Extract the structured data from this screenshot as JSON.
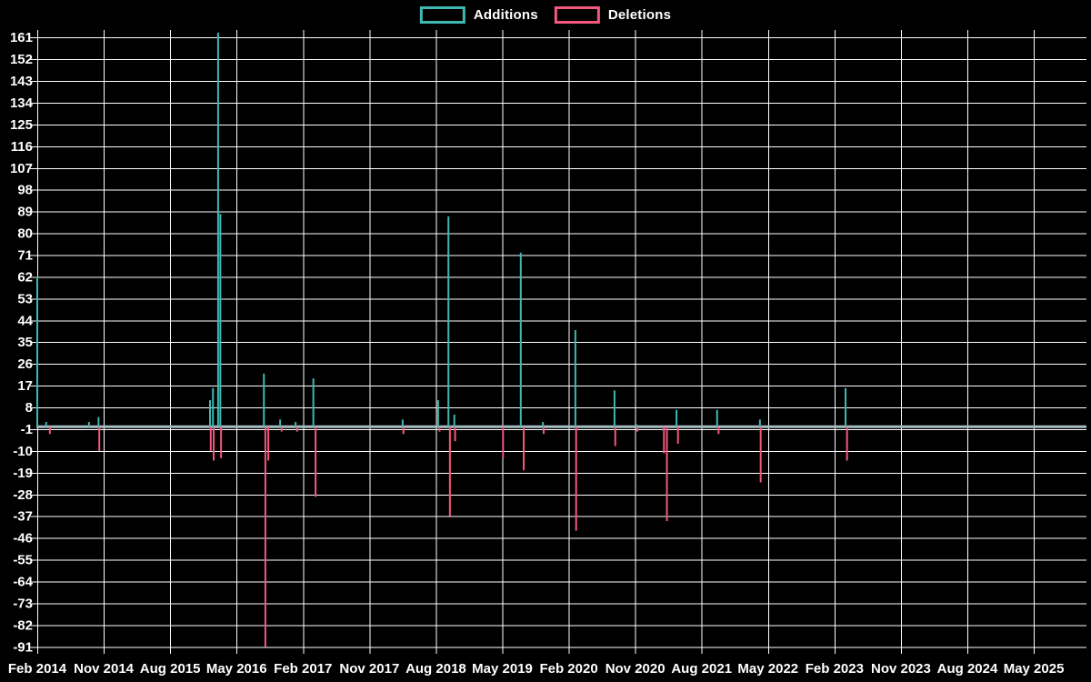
{
  "page": {
    "background": "#000000",
    "grid_color": "#ffffff",
    "text_color": "#ffffff",
    "baseline_color": "#a6bcc3"
  },
  "legend": {
    "additions_label": "Additions",
    "deletions_label": "Deletions"
  },
  "chart_data": {
    "type": "line",
    "title": "",
    "xlabel": "",
    "ylabel": "",
    "grid": true,
    "legend_position": "top-center",
    "x_unit": "months_since_Feb_2014",
    "x_axis": {
      "tick_labels": [
        "Feb 2014",
        "Nov 2014",
        "Aug 2015",
        "May 2016",
        "Feb 2017",
        "Nov 2017",
        "Aug 2018",
        "May 2019",
        "Feb 2020",
        "Nov 2020",
        "Aug 2021",
        "May 2022",
        "Feb 2023",
        "Nov 2023",
        "Aug 2024",
        "May 2025"
      ],
      "tick_interval_months": 9,
      "range_months": [
        0,
        142
      ]
    },
    "y_axis": {
      "tick_labels": [
        161,
        152,
        143,
        134,
        125,
        116,
        107,
        98,
        89,
        80,
        71,
        62,
        53,
        44,
        35,
        26,
        17,
        8,
        -1,
        -10,
        -19,
        -28,
        -37,
        -46,
        -55,
        -64,
        -73,
        -82,
        -91
      ],
      "range": [
        -91,
        164
      ]
    },
    "baseline_value": 0,
    "series": [
      {
        "name": "Additions",
        "color": "#3fb8b1",
        "baseline_value": 0,
        "spikes": [
          [
            0,
            62
          ],
          [
            1.2,
            2
          ],
          [
            7.0,
            2
          ],
          [
            8.3,
            4
          ],
          [
            23.4,
            11
          ],
          [
            23.8,
            16
          ],
          [
            24.5,
            163
          ],
          [
            24.8,
            88
          ],
          [
            30.7,
            22
          ],
          [
            32.9,
            3
          ],
          [
            35.0,
            2
          ],
          [
            37.4,
            20
          ],
          [
            49.5,
            3
          ],
          [
            54.3,
            11
          ],
          [
            55.7,
            87
          ],
          [
            56.5,
            5
          ],
          [
            65.5,
            72
          ],
          [
            68.5,
            2
          ],
          [
            72.9,
            40
          ],
          [
            78.2,
            15
          ],
          [
            81.2,
            1
          ],
          [
            86.6,
            7
          ],
          [
            92.1,
            7
          ],
          [
            97.9,
            3
          ],
          [
            109.5,
            16
          ]
        ]
      },
      {
        "name": "Deletions",
        "color": "#f4587e",
        "baseline_value": 0,
        "spikes": [
          [
            1.7,
            -3
          ],
          [
            8.4,
            -10
          ],
          [
            23.5,
            -10
          ],
          [
            23.9,
            -14
          ],
          [
            24.9,
            -13
          ],
          [
            30.9,
            -91
          ],
          [
            31.3,
            -14
          ],
          [
            33.1,
            -2
          ],
          [
            35.2,
            -2
          ],
          [
            37.7,
            -29
          ],
          [
            49.6,
            -3
          ],
          [
            54.5,
            -2
          ],
          [
            55.9,
            -37
          ],
          [
            56.6,
            -6
          ],
          [
            63.1,
            -13
          ],
          [
            65.9,
            -18
          ],
          [
            68.6,
            -3
          ],
          [
            73.0,
            -43
          ],
          [
            78.3,
            -8
          ],
          [
            81.3,
            -2
          ],
          [
            84.9,
            -11
          ],
          [
            85.3,
            -39
          ],
          [
            86.8,
            -7
          ],
          [
            92.3,
            -3
          ],
          [
            98.0,
            -23
          ],
          [
            109.7,
            -14
          ]
        ]
      }
    ]
  }
}
